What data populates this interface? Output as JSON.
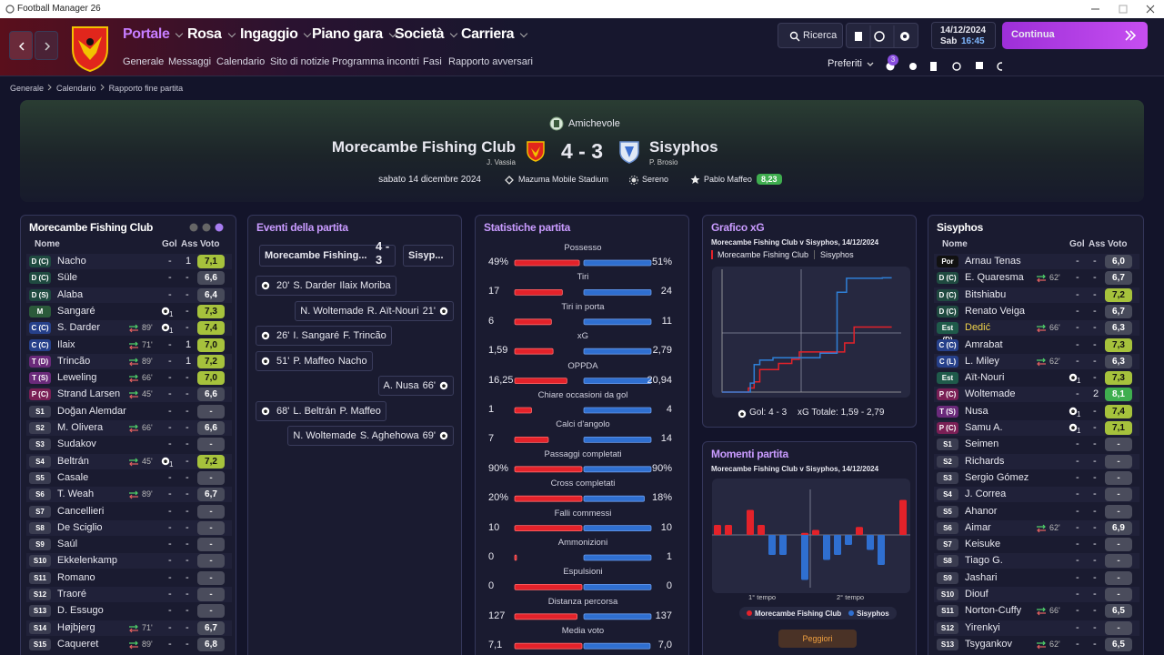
{
  "window": {
    "title": "Football Manager 26"
  },
  "nav": {
    "tabs": [
      "Portale",
      "Rosa",
      "Ingaggio",
      "Piano gara",
      "Società",
      "Carriera"
    ],
    "subtabs": [
      "Generale",
      "Messaggi",
      "Calendario",
      "Sito di notizie",
      "Programma incontri",
      "Fasi",
      "Rapporto avversari"
    ]
  },
  "toolbar": {
    "search": "Ricerca",
    "favorites": "Preferiti",
    "badge": "3"
  },
  "clock": {
    "date": "14/12/2024",
    "day": "Sab",
    "time": "16:45"
  },
  "continue": "Continua",
  "breadcrumb": [
    "Generale",
    "Calendario",
    "Rapporto fine partita"
  ],
  "match": {
    "competition": "Amichevole",
    "home": "Morecambe Fishing Club",
    "home_manager": "J. Vassia",
    "score": "4 - 3",
    "away": "Sisyphos",
    "away_manager": "P. Brosio",
    "date": "sabato 14 dicembre 2024",
    "stadium": "Mazuma Mobile Stadium",
    "weather": "Sereno",
    "referee": "Pablo Maffeo",
    "referee_rating": "8,23"
  },
  "home_squad": {
    "title": "Morecambe Fishing Club",
    "headers": [
      "Nome",
      "Gol",
      "Ass",
      "Voto"
    ],
    "rows": [
      {
        "pos": "D (C)",
        "name": "Nacho",
        "gol": "-",
        "ass": "1",
        "voto": "7,1"
      },
      {
        "pos": "D (C)",
        "name": "Süle",
        "gol": "-",
        "ass": "-",
        "voto": "6,6"
      },
      {
        "pos": "D (S)",
        "name": "Alaba",
        "gol": "-",
        "ass": "-",
        "voto": "6,4"
      },
      {
        "pos": "M",
        "name": "Sangaré",
        "gol": "1",
        "ass": "-",
        "voto": "7,3"
      },
      {
        "pos": "C (C)",
        "name": "S. Darder",
        "sub": "89'",
        "gol": "1",
        "ass": "-",
        "voto": "7,4"
      },
      {
        "pos": "C (C)",
        "name": "Ilaix",
        "sub": "71'",
        "gol": "-",
        "ass": "1",
        "voto": "7,0"
      },
      {
        "pos": "T (D)",
        "name": "Trincão",
        "sub": "89'",
        "gol": "-",
        "ass": "1",
        "voto": "7,2"
      },
      {
        "pos": "T (S)",
        "name": "Leweling",
        "sub": "66'",
        "gol": "-",
        "ass": "-",
        "voto": "7,0"
      },
      {
        "pos": "P (C)",
        "name": "Strand Larsen",
        "sub": "45'",
        "gol": "-",
        "ass": "-",
        "voto": "6,6"
      },
      {
        "pos": "S1",
        "name": "Doğan Alemdar",
        "gol": "-",
        "ass": "-",
        "voto": "-"
      },
      {
        "pos": "S2",
        "name": "M. Olivera",
        "sub": "66'",
        "gol": "-",
        "ass": "-",
        "voto": "6,6"
      },
      {
        "pos": "S3",
        "name": "Sudakov",
        "gol": "-",
        "ass": "-",
        "voto": "-"
      },
      {
        "pos": "S4",
        "name": "Beltrán",
        "sub": "45'",
        "gol": "1",
        "ass": "-",
        "voto": "7,2"
      },
      {
        "pos": "S5",
        "name": "Casale",
        "gol": "-",
        "ass": "-",
        "voto": "-"
      },
      {
        "pos": "S6",
        "name": "T. Weah",
        "sub": "89'",
        "gol": "-",
        "ass": "-",
        "voto": "6,7"
      },
      {
        "pos": "S7",
        "name": "Cancellieri",
        "gol": "-",
        "ass": "-",
        "voto": "-"
      },
      {
        "pos": "S8",
        "name": "De Sciglio",
        "gol": "-",
        "ass": "-",
        "voto": "-"
      },
      {
        "pos": "S9",
        "name": "Saúl",
        "gol": "-",
        "ass": "-",
        "voto": "-"
      },
      {
        "pos": "S10",
        "name": "Ekkelenkamp",
        "gol": "-",
        "ass": "-",
        "voto": "-"
      },
      {
        "pos": "S11",
        "name": "Romano",
        "gol": "-",
        "ass": "-",
        "voto": "-"
      },
      {
        "pos": "S12",
        "name": "Traoré",
        "gol": "-",
        "ass": "-",
        "voto": "-"
      },
      {
        "pos": "S13",
        "name": "D. Essugo",
        "gol": "-",
        "ass": "-",
        "voto": "-"
      },
      {
        "pos": "S14",
        "name": "Højbjerg",
        "sub": "71'",
        "gol": "-",
        "ass": "-",
        "voto": "6,7"
      },
      {
        "pos": "S15",
        "name": "Caqueret",
        "sub": "89'",
        "gol": "-",
        "ass": "-",
        "voto": "6,8"
      }
    ]
  },
  "events": {
    "title": "Eventi della partita",
    "home": "Morecambe Fishing...",
    "score": "4 - 3",
    "away": "Sisyp...",
    "items": [
      {
        "side": "home",
        "minute": "20'",
        "names": [
          "S. Darder",
          "Ilaix Moriba"
        ]
      },
      {
        "side": "away",
        "minute": "21'",
        "names": [
          "N. Woltemade",
          "R. Aït-Nouri"
        ]
      },
      {
        "side": "home",
        "minute": "26'",
        "names": [
          "I. Sangaré",
          "F. Trincão"
        ]
      },
      {
        "side": "home",
        "minute": "51'",
        "names": [
          "P. Maffeo",
          "Nacho"
        ]
      },
      {
        "side": "away",
        "minute": "66'",
        "names": [
          "A. Nusa"
        ]
      },
      {
        "side": "home",
        "minute": "68'",
        "names": [
          "L. Beltrán",
          "P. Maffeo"
        ]
      },
      {
        "side": "away",
        "minute": "69'",
        "names": [
          "N. Woltemade",
          "S. Aghehowa"
        ]
      }
    ]
  },
  "stats": {
    "title": "Statistiche partita",
    "rows": [
      {
        "label": "Possesso",
        "values": [
          49,
          51
        ],
        "value_labels": [
          "49%",
          "51%"
        ]
      },
      {
        "label": "Tiri",
        "values": [
          17,
          24
        ]
      },
      {
        "label": "Tiri in porta",
        "values": [
          6,
          11
        ]
      },
      {
        "label": "xG",
        "values": [
          1.59,
          2.79
        ],
        "value_labels": [
          "1,59",
          "2,79"
        ]
      },
      {
        "label": "OPPDA",
        "values": [
          16.25,
          20.94
        ],
        "value_labels": [
          "16,25",
          "20,94"
        ]
      },
      {
        "label": "Chiare occasioni da gol",
        "values": [
          1,
          4
        ]
      },
      {
        "label": "Calci d'angolo",
        "values": [
          7,
          14
        ]
      },
      {
        "label": "Passaggi completati",
        "values": [
          90,
          90
        ],
        "value_labels": [
          "90%",
          "90%"
        ]
      },
      {
        "label": "Cross completati",
        "values": [
          20,
          18
        ],
        "value_labels": [
          "20%",
          "18%"
        ]
      },
      {
        "label": "Falli commessi",
        "values": [
          10,
          10
        ]
      },
      {
        "label": "Ammonizioni",
        "values": [
          0,
          1
        ]
      },
      {
        "label": "Espulsioni",
        "values": [
          0,
          0
        ]
      },
      {
        "label": "Distanza percorsa",
        "values": [
          127,
          137
        ]
      },
      {
        "label": "Media voto",
        "values": [
          7.1,
          7.0
        ],
        "value_labels": [
          "7,1",
          "7,0"
        ]
      }
    ]
  },
  "xg_chart": {
    "type": "line",
    "title": "Grafico xG",
    "subtitle": "Morecambe Fishing Club v Sisyphos, 14/12/2024",
    "xlim": [
      0,
      95
    ],
    "ylim": [
      0,
      3
    ],
    "series": [
      {
        "name": "Morecambe Fishing Club",
        "color": "#e3222a",
        "x": [
          0,
          14,
          14,
          17,
          17,
          20,
          20,
          30,
          30,
          37,
          37,
          41,
          41,
          65,
          65,
          70,
          70,
          90
        ],
        "values": [
          0,
          0,
          0.1,
          0.1,
          0.25,
          0.25,
          0.55,
          0.55,
          0.7,
          0.7,
          0.8,
          0.8,
          0.98,
          0.98,
          1.2,
          1.2,
          1.59,
          1.59
        ]
      },
      {
        "name": "Sisyphos",
        "color": "#2f7fd6",
        "x": [
          0,
          15,
          15,
          17,
          17,
          20,
          20,
          27,
          27,
          52,
          52,
          61,
          61,
          66,
          66,
          85,
          85,
          90
        ],
        "values": [
          0,
          0,
          0.22,
          0.22,
          0.67,
          0.67,
          0.78,
          0.78,
          0.84,
          0.84,
          0.95,
          0.95,
          2.44,
          2.44,
          2.78,
          2.78,
          2.79,
          2.79
        ]
      }
    ],
    "goals": "Gol: 4 - 3",
    "xg_total": "xG Totale: 1,59 - 2,79"
  },
  "moments_chart": {
    "type": "bar",
    "title": "Momenti partita",
    "subtitle": "Morecambe Fishing Club v Sisyphos, 14/12/2024",
    "halves": [
      "1° tempo",
      "2° tempo"
    ],
    "ylim": [
      -0.5,
      0.5
    ],
    "series": [
      {
        "name": "Morecambe Fishing Club",
        "color": "#e3222a",
        "values": [
          0.1,
          0.1,
          0,
          0.25,
          0.1,
          0,
          0,
          0,
          0.02,
          0.05,
          0,
          0,
          0,
          0.08,
          0,
          0,
          0,
          0.35
        ]
      },
      {
        "name": "Sisyphos",
        "color": "#2f6fd0",
        "values": [
          0,
          0,
          0,
          0,
          0,
          0.2,
          0.2,
          0,
          0.45,
          0,
          0.25,
          0.2,
          0.1,
          0,
          0.15,
          0.3,
          0,
          0
        ]
      }
    ],
    "button": "Peggiori"
  },
  "away_squad": {
    "title": "Sisyphos",
    "headers": [
      "Nome",
      "Gol",
      "Ass",
      "Voto"
    ],
    "rows": [
      {
        "pos": "Por",
        "name": "Arnau Tenas",
        "gol": "-",
        "ass": "-",
        "voto": "6,0"
      },
      {
        "pos": "D (C)",
        "name": "E. Quaresma",
        "sub": "62'",
        "gol": "-",
        "ass": "-",
        "voto": "6,7"
      },
      {
        "pos": "D (C)",
        "name": "Bitshiabu",
        "gol": "-",
        "ass": "-",
        "voto": "7,2"
      },
      {
        "pos": "D (C)",
        "name": "Renato Veiga",
        "gol": "-",
        "ass": "-",
        "voto": "6,7"
      },
      {
        "pos": "Est (D)",
        "name": "Dedić",
        "sub": "66'",
        "gol": "-",
        "ass": "-",
        "voto": "6,3",
        "highlight": true
      },
      {
        "pos": "C (C)",
        "name": "Amrabat",
        "gol": "-",
        "ass": "-",
        "voto": "7,3"
      },
      {
        "pos": "C (L)",
        "name": "L. Miley",
        "sub": "62'",
        "gol": "-",
        "ass": "-",
        "voto": "6,3"
      },
      {
        "pos": "Est (S)",
        "name": "Aït-Nouri",
        "gol": "1",
        "ass": "-",
        "voto": "7,3"
      },
      {
        "pos": "P (C)",
        "name": "Woltemade",
        "gol": "-",
        "ass": "2",
        "voto": "8,1"
      },
      {
        "pos": "T (S)",
        "name": "Nusa",
        "gol": "1",
        "ass": "-",
        "voto": "7,4"
      },
      {
        "pos": "P (C)",
        "name": "Samu A.",
        "gol": "1",
        "ass": "-",
        "voto": "7,1"
      },
      {
        "pos": "S1",
        "name": "Seimen",
        "gol": "-",
        "ass": "-",
        "voto": "-"
      },
      {
        "pos": "S2",
        "name": "Richards",
        "gol": "-",
        "ass": "-",
        "voto": "-"
      },
      {
        "pos": "S3",
        "name": "Sergio Gómez",
        "gol": "-",
        "ass": "-",
        "voto": "-"
      },
      {
        "pos": "S4",
        "name": "J. Correa",
        "gol": "-",
        "ass": "-",
        "voto": "-"
      },
      {
        "pos": "S5",
        "name": "Ahanor",
        "gol": "-",
        "ass": "-",
        "voto": "-"
      },
      {
        "pos": "S6",
        "name": "Aimar",
        "sub": "62'",
        "gol": "-",
        "ass": "-",
        "voto": "6,9"
      },
      {
        "pos": "S7",
        "name": "Keisuke",
        "gol": "-",
        "ass": "-",
        "voto": "-"
      },
      {
        "pos": "S8",
        "name": "Tiago G.",
        "gol": "-",
        "ass": "-",
        "voto": "-"
      },
      {
        "pos": "S9",
        "name": "Jashari",
        "gol": "-",
        "ass": "-",
        "voto": "-"
      },
      {
        "pos": "S10",
        "name": "Diouf",
        "gol": "-",
        "ass": "-",
        "voto": "-"
      },
      {
        "pos": "S11",
        "name": "Norton-Cuffy",
        "sub": "66'",
        "gol": "-",
        "ass": "-",
        "voto": "6,5"
      },
      {
        "pos": "S12",
        "name": "Yirenkyi",
        "gol": "-",
        "ass": "-",
        "voto": "-"
      },
      {
        "pos": "S13",
        "name": "Tsygankov",
        "sub": "62'",
        "gol": "-",
        "ass": "-",
        "voto": "6,5"
      }
    ]
  }
}
